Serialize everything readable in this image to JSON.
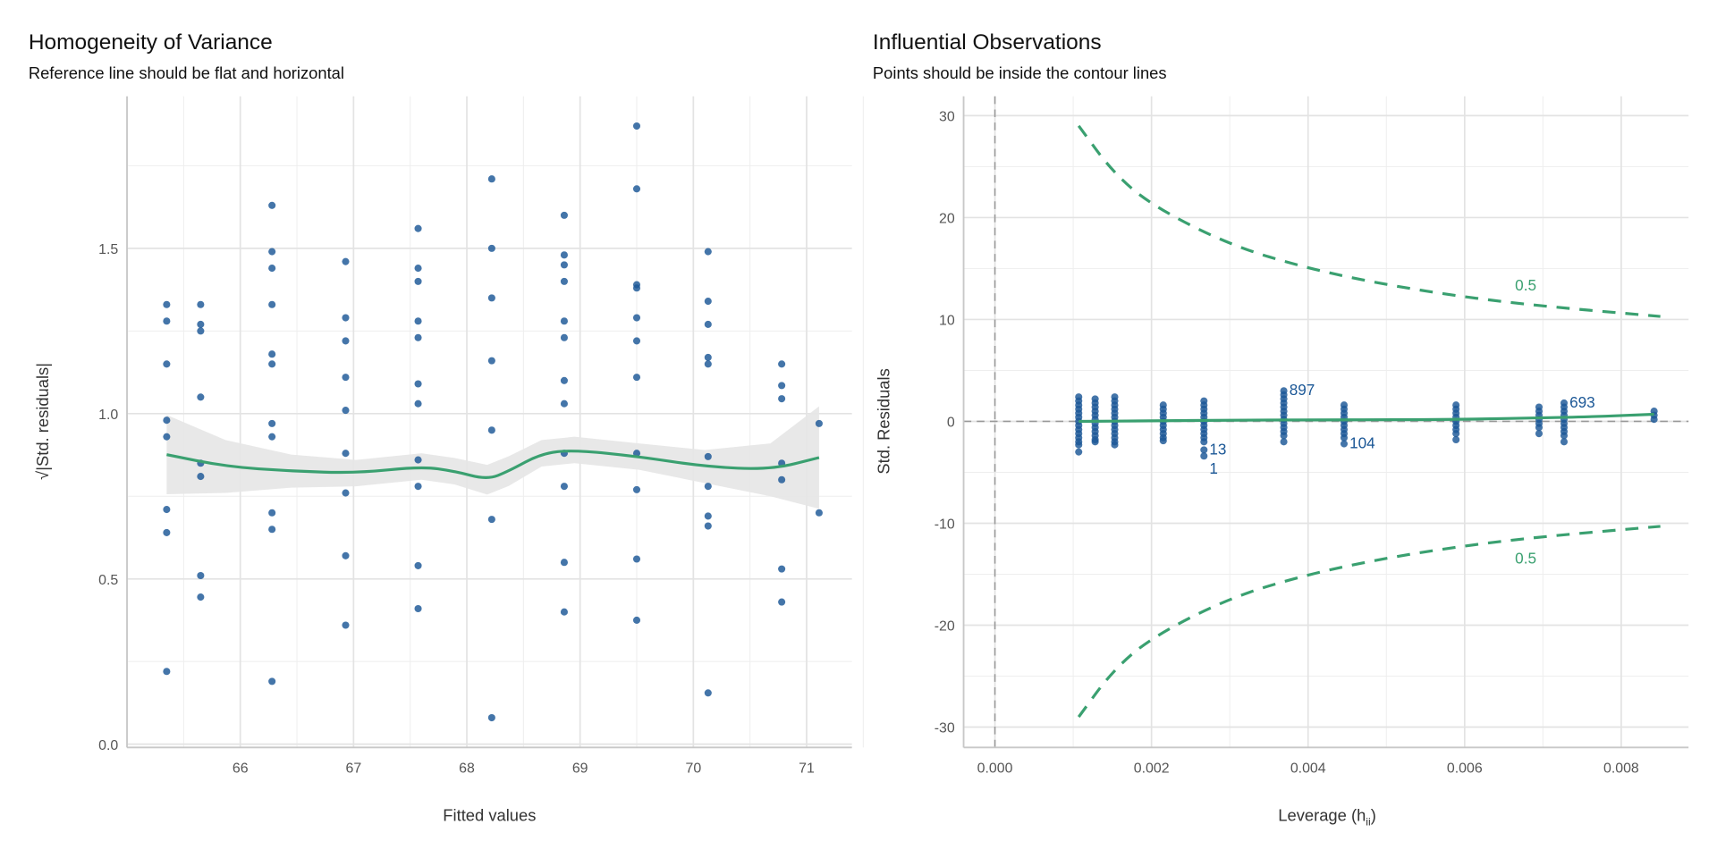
{
  "colors": {
    "points": "#1b5796",
    "smooth": "#3aa070",
    "ci_band": "#e6e6e6",
    "grid": "#e3e3e3",
    "reference": "#999999",
    "contour": "#3aa070"
  },
  "chart_data": [
    {
      "type": "scatter",
      "title": "Homogeneity of Variance",
      "subtitle": "Reference line should be flat and horizontal",
      "xlabel": "Fitted values",
      "ylabel": "√|Std. residuals|",
      "xlim": [
        65.0,
        71.4
      ],
      "ylim": [
        -0.01,
        1.96
      ],
      "grid": true,
      "xticks": [
        66,
        67,
        68,
        69,
        70,
        71
      ],
      "xtick_labels": [
        "66",
        "67",
        "68",
        "69",
        "70",
        "71"
      ],
      "yticks": [
        0,
        0.5,
        1.0,
        1.5
      ],
      "ytick_labels": [
        "0.0",
        "0.5",
        "1.0",
        "1.5"
      ],
      "columns": [
        {
          "x": 65.35,
          "y": [
            1.33,
            1.28,
            1.15,
            0.98,
            0.93,
            0.71,
            0.64,
            0.22
          ]
        },
        {
          "x": 65.65,
          "y": [
            1.33,
            1.27,
            1.25,
            1.05,
            0.85,
            0.81,
            0.51,
            0.445
          ]
        },
        {
          "x": 66.28,
          "y": [
            1.63,
            1.49,
            1.44,
            1.33,
            1.18,
            1.15,
            0.97,
            0.93,
            0.7,
            0.65,
            0.19
          ]
        },
        {
          "x": 66.93,
          "y": [
            1.46,
            1.29,
            1.22,
            1.11,
            1.01,
            0.88,
            0.76,
            0.57,
            0.36
          ]
        },
        {
          "x": 67.57,
          "y": [
            1.56,
            1.44,
            1.4,
            1.28,
            1.23,
            1.09,
            1.03,
            0.86,
            0.78,
            0.54,
            0.41
          ]
        },
        {
          "x": 68.22,
          "y": [
            1.71,
            1.5,
            1.35,
            1.16,
            0.95,
            0.68,
            0.08
          ]
        },
        {
          "x": 68.86,
          "y": [
            1.6,
            1.48,
            1.45,
            1.4,
            1.28,
            1.23,
            1.1,
            1.03,
            0.88,
            0.78,
            0.55,
            0.4
          ]
        },
        {
          "x": 69.5,
          "y": [
            1.87,
            1.68,
            1.39,
            1.38,
            1.29,
            1.22,
            1.11,
            0.88,
            0.77,
            0.56,
            0.375
          ]
        },
        {
          "x": 70.13,
          "y": [
            1.49,
            1.34,
            1.27,
            1.17,
            1.15,
            0.87,
            0.78,
            0.69,
            0.66,
            0.155
          ]
        },
        {
          "x": 70.78,
          "y": [
            1.15,
            1.085,
            1.045,
            0.85,
            0.8,
            0.53,
            0.43
          ]
        },
        {
          "x": 71.11,
          "y": [
            0.97,
            0.7
          ]
        }
      ],
      "smooth": {
        "x": [
          65.35,
          65.87,
          66.45,
          67.02,
          67.6,
          67.89,
          68.18,
          68.37,
          68.66,
          68.95,
          69.52,
          70.1,
          70.68,
          71.11
        ],
        "y": [
          0.876,
          0.84,
          0.826,
          0.82,
          0.84,
          0.826,
          0.8,
          0.826,
          0.88,
          0.89,
          0.87,
          0.84,
          0.83,
          0.867
        ],
        "ci_halfwidth": [
          0.12,
          0.08,
          0.05,
          0.04,
          0.04,
          0.04,
          0.045,
          0.045,
          0.04,
          0.04,
          0.04,
          0.05,
          0.08,
          0.155
        ]
      }
    },
    {
      "type": "scatter",
      "title": "Influential Observations",
      "subtitle": "Points should be inside the contour lines",
      "xlabel": "Leverage (h",
      "xlabel_sub": "ii",
      "xlabel_end": ")",
      "ylabel": "Std. Residuals",
      "xlim": [
        -0.0004,
        0.00886
      ],
      "ylim": [
        -32,
        31.9
      ],
      "grid": true,
      "xticks": [
        0,
        0.002,
        0.004,
        0.006,
        0.008
      ],
      "xtick_labels": [
        "0.000",
        "0.002",
        "0.004",
        "0.006",
        "0.008"
      ],
      "yticks": [
        -30,
        -20,
        -10,
        0,
        10,
        20,
        30
      ],
      "ytick_labels": [
        "-30",
        "-20",
        "-10",
        "0",
        "10",
        "20",
        "30"
      ],
      "columns": [
        {
          "x": 0.00107,
          "y": [
            2.4,
            2.0,
            1.6,
            1.2,
            0.8,
            0.4,
            0,
            -0.4,
            -0.8,
            -1.2,
            -1.6,
            -2.0,
            -2.3,
            -3.0
          ]
        },
        {
          "x": 0.00128,
          "y": [
            2.2,
            1.8,
            1.4,
            1.0,
            0.6,
            0.2,
            -0.2,
            -0.6,
            -1.0,
            -1.4,
            -1.8,
            -2.0
          ]
        },
        {
          "x": 0.00153,
          "y": [
            2.4,
            2.0,
            1.6,
            1.2,
            0.8,
            0.4,
            0,
            -0.4,
            -0.8,
            -1.2,
            -1.6,
            -2.0,
            -2.3
          ]
        },
        {
          "x": 0.00215,
          "y": [
            1.6,
            1.2,
            0.8,
            0.4,
            0,
            -0.4,
            -0.8,
            -1.2,
            -1.6,
            -1.9
          ]
        },
        {
          "x": 0.00267,
          "y": [
            2.0,
            1.6,
            1.2,
            0.8,
            0.4,
            0,
            -0.4,
            -0.8,
            -1.2,
            -1.6,
            -2.0,
            -2.8,
            -3.4
          ]
        },
        {
          "x": 0.00369,
          "y": [
            3.0,
            2.6,
            2.2,
            1.8,
            1.4,
            1.0,
            0.6,
            0.2,
            -0.2,
            -0.6,
            -1.0,
            -1.4,
            -2.0
          ]
        },
        {
          "x": 0.00446,
          "y": [
            1.6,
            1.2,
            0.8,
            0.4,
            0,
            -0.4,
            -0.8,
            -1.2,
            -1.6,
            -2.2
          ]
        },
        {
          "x": 0.00589,
          "y": [
            1.6,
            1.2,
            0.8,
            0.4,
            0,
            -0.4,
            -0.8,
            -1.2,
            -1.8
          ]
        },
        {
          "x": 0.00695,
          "y": [
            1.4,
            1.0,
            0.6,
            0.2,
            -0.2,
            -0.6,
            -1.2
          ]
        },
        {
          "x": 0.00727,
          "y": [
            1.8,
            1.4,
            1.0,
            0.6,
            0.2,
            -0.2,
            -0.6,
            -1.0,
            -1.4,
            -2.0
          ]
        },
        {
          "x": 0.00842,
          "y": [
            1.0,
            0.6,
            0.2
          ]
        }
      ],
      "smooth": {
        "x": [
          0.00107,
          0.002,
          0.003,
          0.004,
          0.005,
          0.006,
          0.007,
          0.0076,
          0.00842
        ],
        "y": [
          0,
          0.05,
          0.12,
          0.15,
          0.15,
          0.2,
          0.35,
          0.45,
          0.7
        ]
      },
      "point_labels": [
        {
          "text": "897",
          "x": 0.00369,
          "y": 3.0
        },
        {
          "text": "693",
          "x": 0.00727,
          "y": 1.8
        },
        {
          "text": "104",
          "x": 0.00446,
          "y": -2.2
        },
        {
          "text": "13",
          "x": 0.00267,
          "y": -2.8
        },
        {
          "text": "1",
          "x": 0.00267,
          "y": -3.4
        }
      ],
      "contour": {
        "level_label": "0.5",
        "x": [
          0.00107,
          0.0015,
          0.002,
          0.003,
          0.004,
          0.005,
          0.006,
          0.007,
          0.0085
        ],
        "y_upper": [
          29.0,
          24.5,
          21.2,
          17.3,
          15.0,
          13.4,
          12.2,
          11.3,
          10.3
        ],
        "label_at": {
          "x": 0.00678,
          "y": 13.4
        }
      },
      "reference_lines": {
        "x": 0,
        "y": 0
      }
    }
  ]
}
